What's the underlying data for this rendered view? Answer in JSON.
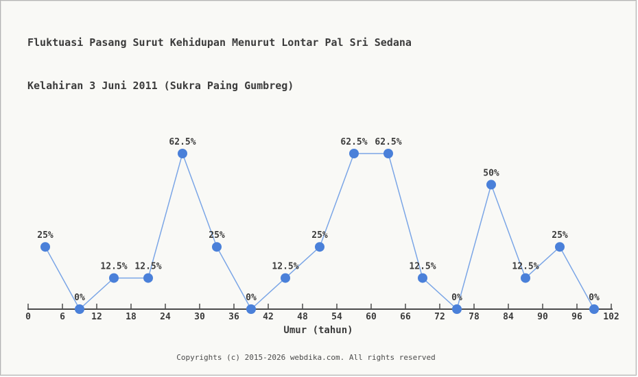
{
  "header": {
    "title_line1": "Fluktuasi Pasang Surut Kehidupan Menurut Lontar Pal Sri Sedana",
    "title_line2": "Kelahiran 3 Juni 2011 (Sukra Paing Gumbreg)"
  },
  "footer": {
    "text": "Copyrights (c) 2015-2026 webdika.com. All rights reserved"
  },
  "chart_data": {
    "type": "line",
    "title": "Fluktuasi Pasang Surut Kehidupan Menurut Lontar Pal Sri Sedana Kelahiran 3 Juni 2011 (Sukra Paing Gumbreg)",
    "xlabel": "Umur (tahun)",
    "x": [
      3,
      9,
      15,
      21,
      27,
      33,
      39,
      45,
      51,
      57,
      63,
      69,
      75,
      81,
      87,
      93,
      99
    ],
    "values": [
      25,
      0,
      12.5,
      12.5,
      62.5,
      25,
      0,
      12.5,
      25,
      62.5,
      62.5,
      12.5,
      0,
      50,
      12.5,
      25,
      0
    ],
    "point_labels": [
      "25%",
      "0%",
      "12.5%",
      "12.5%",
      "62.5%",
      "25%",
      "0%",
      "12.5%",
      "25%",
      "62.5%",
      "62.5%",
      "12.5%",
      "0%",
      "50%",
      "12.5%",
      "25%",
      "0%"
    ],
    "x_ticks": [
      "0",
      "6",
      "12",
      "18",
      "24",
      "30",
      "36",
      "42",
      "48",
      "54",
      "60",
      "66",
      "72",
      "78",
      "84",
      "90",
      "96",
      "102"
    ],
    "xlim": [
      0,
      102
    ],
    "ylim": [
      0,
      100
    ],
    "grid": false,
    "legend": "none",
    "colors": {
      "line": "#7aa5e6",
      "point": "#4a80d9",
      "axis": "#4a4a4a",
      "label_text": "#3b3b3b",
      "background": "#f9f9f6"
    }
  }
}
